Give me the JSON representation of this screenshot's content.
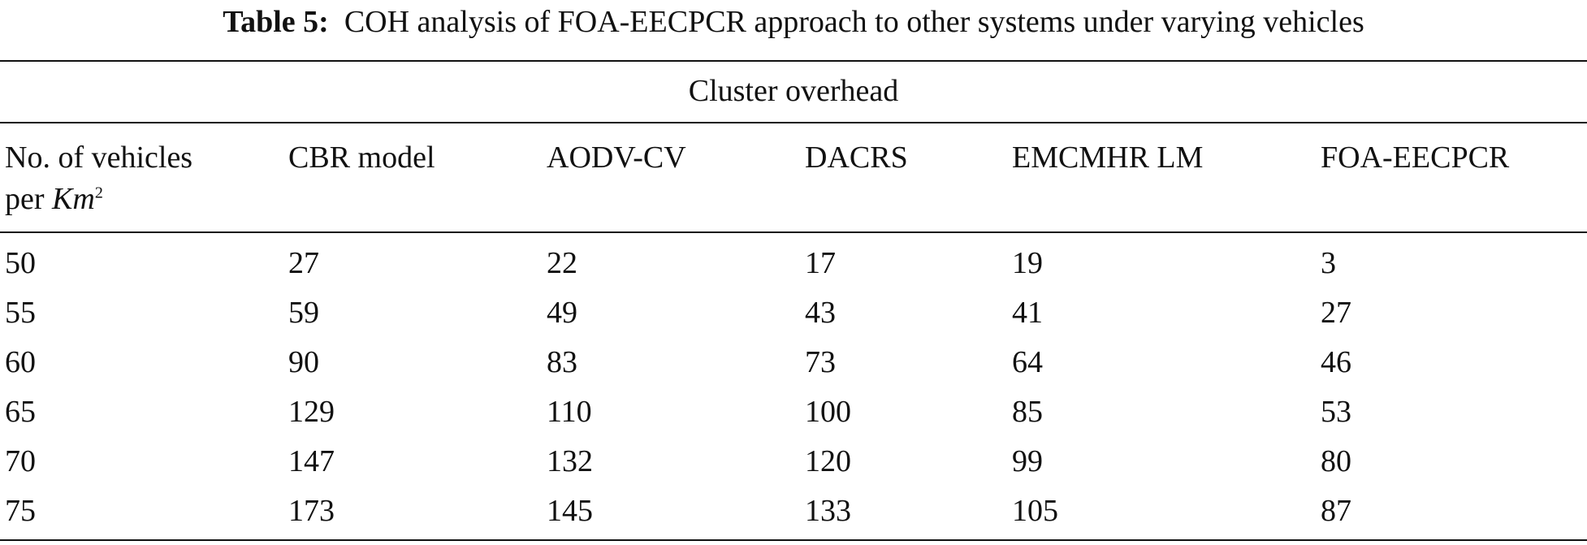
{
  "table": {
    "label": "Table 5:",
    "caption": "COH analysis of FOA-EECPCR approach to other systems under varying vehicles",
    "group_header": "Cluster overhead",
    "first_column_header": {
      "line1": "No. of vehicles",
      "line2": "per",
      "unit": "Km",
      "exponent": "2"
    },
    "columns": [
      "CBR model",
      "AODV-CV",
      "DACRS",
      "EMCMHR LM",
      "FOA-EECPCR"
    ],
    "rows": [
      [
        50,
        27,
        22,
        17,
        19,
        3
      ],
      [
        55,
        59,
        49,
        43,
        41,
        27
      ],
      [
        60,
        90,
        83,
        73,
        64,
        46
      ],
      [
        65,
        129,
        110,
        100,
        85,
        53
      ],
      [
        70,
        147,
        132,
        120,
        99,
        80
      ],
      [
        75,
        173,
        145,
        133,
        105,
        87
      ]
    ]
  }
}
